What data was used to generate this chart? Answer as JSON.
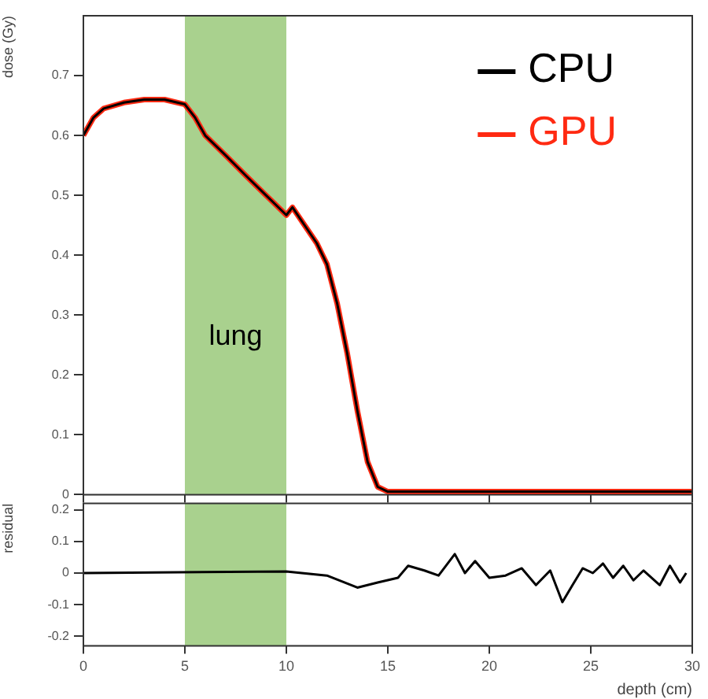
{
  "chart_data": [
    {
      "type": "line",
      "ylabel": "dose (Gy)",
      "x": [
        0,
        0.5,
        1,
        2,
        3,
        4,
        5,
        5.5,
        6,
        7,
        8,
        9,
        10,
        10.3,
        11,
        11.5,
        12,
        12.5,
        13,
        13.5,
        14,
        14.5,
        15,
        17,
        20,
        25,
        30
      ],
      "series": [
        {
          "name": "CPU",
          "color": "#000000",
          "values": [
            0.6,
            0.63,
            0.645,
            0.655,
            0.66,
            0.66,
            0.652,
            0.63,
            0.6,
            0.567,
            0.533,
            0.5,
            0.467,
            0.48,
            0.445,
            0.42,
            0.385,
            0.32,
            0.236,
            0.14,
            0.055,
            0.013,
            0.005,
            0.005,
            0.005,
            0.005,
            0.005
          ]
        },
        {
          "name": "GPU",
          "color": "#ff2a12",
          "values": [
            0.6,
            0.63,
            0.645,
            0.655,
            0.66,
            0.66,
            0.652,
            0.63,
            0.6,
            0.567,
            0.533,
            0.5,
            0.467,
            0.48,
            0.445,
            0.42,
            0.385,
            0.32,
            0.236,
            0.14,
            0.055,
            0.013,
            0.005,
            0.005,
            0.005,
            0.005,
            0.005
          ]
        }
      ],
      "xlim": [
        0,
        30
      ],
      "xticks": [
        0,
        5,
        10,
        15,
        20,
        25,
        30
      ],
      "ylim": [
        0,
        0.8
      ],
      "yticks": [
        0,
        0.1,
        0.2,
        0.3,
        0.4,
        0.5,
        0.6,
        0.7
      ],
      "tick_labels": "y",
      "legend": "top right",
      "grid": false,
      "bands": [
        {
          "axis": "x",
          "from": 5,
          "to": 10,
          "label": "lung",
          "color": "#a9d18e"
        }
      ]
    },
    {
      "type": "line",
      "xlabel": "depth (cm)",
      "ylabel": "residual",
      "x": [
        0,
        10,
        12,
        13.5,
        14.5,
        15.5,
        16,
        16.8,
        17.5,
        18.3,
        18.8,
        19.3,
        20,
        20.8,
        21.6,
        22.3,
        23,
        23.6,
        24.1,
        24.6,
        25.1,
        25.6,
        26.1,
        26.6,
        27.1,
        27.6,
        28.4,
        28.9,
        29.4,
        29.7
      ],
      "series": [
        {
          "color": "#000000",
          "values": [
            0,
            0.005,
            -0.008,
            -0.046,
            -0.03,
            -0.015,
            0.023,
            0.008,
            -0.008,
            0.06,
            0,
            0.038,
            -0.015,
            -0.008,
            0.015,
            -0.038,
            0.008,
            -0.092,
            -0.038,
            0.015,
            0,
            0.03,
            -0.015,
            0.023,
            -0.023,
            0.008,
            -0.038,
            0.023,
            -0.03,
            0
          ]
        }
      ],
      "xlim": [
        0,
        30
      ],
      "xticks": [
        0,
        5,
        10,
        15,
        20,
        25,
        30
      ],
      "ylim": [
        -0.23,
        0.22
      ],
      "yticks": [
        -0.2,
        -0.1,
        0,
        0.1,
        0.2
      ],
      "legend": false,
      "grid": false,
      "bands": [
        {
          "axis": "x",
          "from": 5,
          "to": 10,
          "color": "#a9d18e"
        }
      ]
    }
  ]
}
